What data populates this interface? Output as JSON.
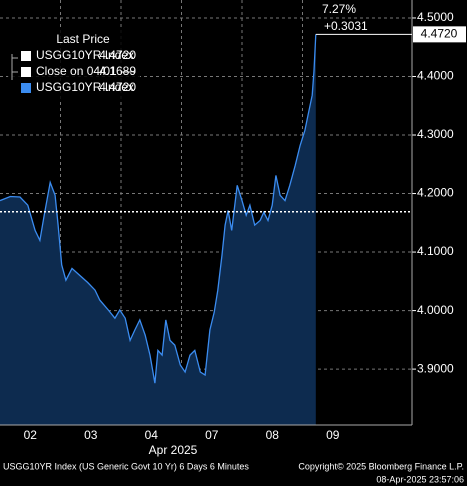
{
  "chart_data": {
    "type": "area",
    "x": [
      0,
      0.17,
      0.33,
      0.46,
      0.58,
      0.66,
      0.73,
      0.83,
      0.91,
      0.96,
      1.02,
      1.09,
      1.19,
      1.32,
      1.45,
      1.57,
      1.65,
      1.79,
      1.9,
      1.98,
      2.07,
      2.15,
      2.23,
      2.31,
      2.4,
      2.48,
      2.56,
      2.61,
      2.68,
      2.74,
      2.81,
      2.89,
      2.98,
      3.06,
      3.14,
      3.22,
      3.31,
      3.39,
      3.47,
      3.54,
      3.6,
      3.67,
      3.72,
      3.77,
      3.83,
      3.92,
      4,
      4.07,
      4.13,
      4.21,
      4.3,
      4.36,
      4.43,
      4.5,
      4.56,
      4.63,
      4.71,
      4.79,
      4.88,
      4.96,
      5.04,
      5.09,
      5.16,
      5.19,
      5.22
    ],
    "series": [
      {
        "name": "USGG10YR Index",
        "color": "#3b8cf0",
        "fill": "#0d2b4f",
        "values": [
          4.188,
          4.195,
          4.194,
          4.18,
          4.137,
          4.12,
          4.163,
          4.219,
          4.197,
          4.146,
          4.078,
          4.052,
          4.072,
          4.06,
          4.048,
          4.035,
          4.018,
          4.001,
          3.987,
          4.001,
          3.987,
          3.949,
          3.967,
          3.984,
          3.958,
          3.924,
          3.876,
          3.932,
          3.924,
          3.984,
          3.949,
          3.941,
          3.907,
          3.895,
          3.924,
          3.932,
          3.895,
          3.89,
          3.967,
          3.997,
          4.035,
          4.095,
          4.146,
          4.171,
          4.137,
          4.214,
          4.188,
          4.163,
          4.18,
          4.146,
          4.154,
          4.168,
          4.154,
          4.18,
          4.231,
          4.197,
          4.188,
          4.214,
          4.248,
          4.282,
          4.308,
          4.333,
          4.368,
          4.41,
          4.472
        ]
      }
    ],
    "xlim": [
      0,
      6.81
    ],
    "xticks": [
      {
        "value": 0.5,
        "label": "02"
      },
      {
        "value": 1.5,
        "label": "03"
      },
      {
        "value": 2.5,
        "label": "04"
      },
      {
        "value": 3.5,
        "label": "07"
      },
      {
        "value": 4.5,
        "label": "08"
      },
      {
        "value": 5.5,
        "label": "09"
      }
    ],
    "xgrid": [
      1,
      2,
      3,
      4,
      5
    ],
    "x_label": "Apr 2025",
    "ylim": [
      3.8045,
      4.5307
    ],
    "yticks": [
      {
        "value": 3.9,
        "label": "3.9000"
      },
      {
        "value": 4.0,
        "label": "4.0000"
      },
      {
        "value": 4.1,
        "label": "4.1000"
      },
      {
        "value": 4.2,
        "label": "4.2000"
      },
      {
        "value": 4.3,
        "label": "4.3000"
      },
      {
        "value": 4.4,
        "label": "4.4000"
      },
      {
        "value": 4.5,
        "label": "4.5000"
      }
    ],
    "last_label": "4.4720",
    "close_value": 4.1689,
    "legend": {
      "title": "Last Price",
      "entries": [
        {
          "label": "USGG10YR Index",
          "value": "4.4720",
          "color": "#ffffff"
        },
        {
          "label": "Close on 04/01 ----",
          "color": "#ffffff"
        },
        {
          "label": "USGG10YR Index",
          "value": "4.4720",
          "color": "#3b8cf0"
        }
      ]
    },
    "change_pct": "7.27%",
    "change_abs": "+0.3031",
    "footer_left": "USGG10YR Index (US Generic Govt 10 Yr) 6 Days 6 Minutes",
    "footer_right": "Copyright© 2025 Bloomberg Finance L.P.",
    "footer_time": "08-Apr-2025 23:57:06"
  }
}
